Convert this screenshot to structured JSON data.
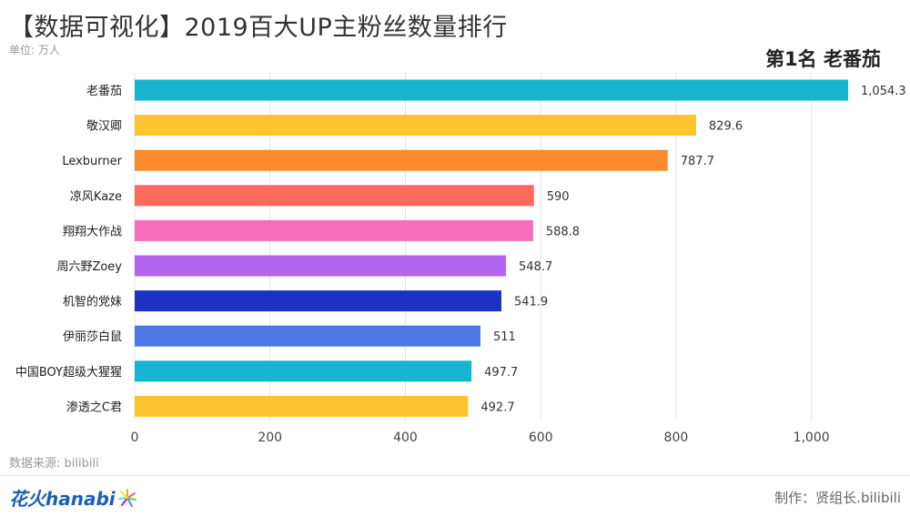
{
  "header": {
    "title": "【数据可视化】2019百大UP主粉丝数量排行",
    "unit": "单位: 万人",
    "rank_label": "第1名 老番茄"
  },
  "footer": {
    "source": "数据来源: bilibili",
    "logo_text": "花火hanabi",
    "credit": "制作：贤组长.bilibili"
  },
  "chart_data": {
    "type": "bar",
    "orientation": "horizontal",
    "categories": [
      "老番茄",
      "敬汉卿",
      "Lexburner",
      "凉风Kaze",
      "翔翔大作战",
      "周六野Zoey",
      "机智的党妹",
      "伊丽莎白鼠",
      "中国BOY超级大猩猩",
      "渗透之C君"
    ],
    "values": [
      1054.3,
      829.6,
      787.7,
      590,
      588.8,
      548.7,
      541.9,
      511,
      497.7,
      492.7
    ],
    "value_labels": [
      "1,054.3",
      "829.6",
      "787.7",
      "590",
      "588.8",
      "548.7",
      "541.9",
      "511",
      "497.7",
      "492.7"
    ],
    "colors": [
      "#17b5d1",
      "#fcc52f",
      "#fb8a2c",
      "#fa6a5d",
      "#f66dbb",
      "#b266f0",
      "#1d32c3",
      "#4b78e5",
      "#17b5d1",
      "#fcc52f"
    ],
    "xticks": [
      0,
      200,
      400,
      600,
      800,
      1000
    ],
    "xtick_labels": [
      "0",
      "200",
      "400",
      "600",
      "800",
      "1,000"
    ],
    "xlim": [
      0,
      1100
    ],
    "grid": true
  }
}
